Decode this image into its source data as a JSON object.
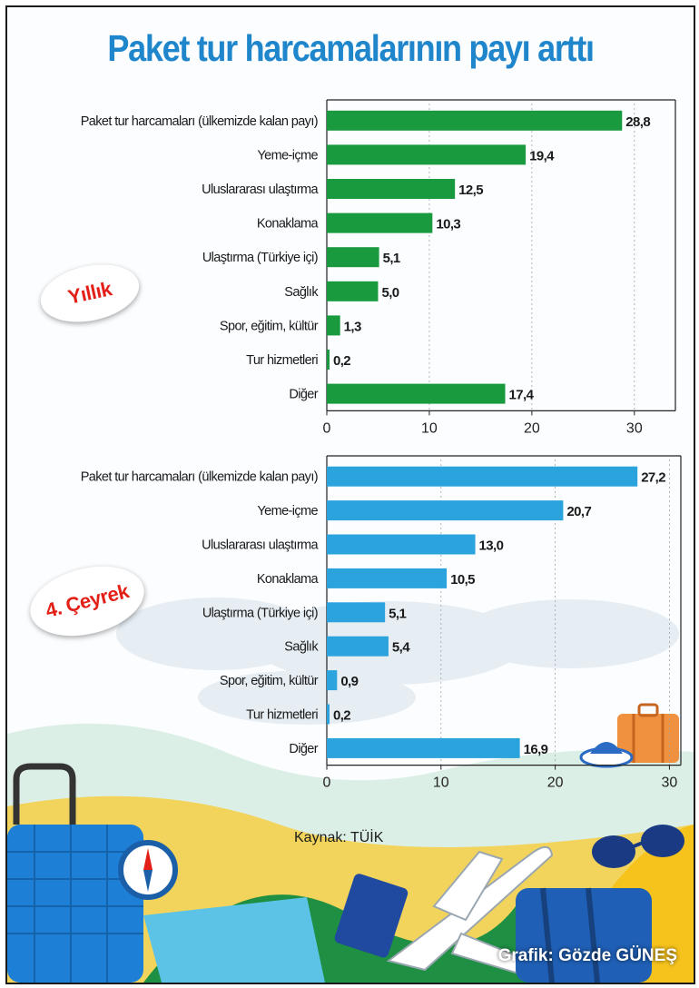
{
  "title": "Paket tur harcamalarının payı arttı",
  "source": "Kaynak: TÜİK",
  "credit": "Grafik: Gözde GÜNEŞ",
  "colors": {
    "title": "#1f86cc",
    "annual_bar": "#1a9a3e",
    "quarter_bar": "#2ba3dc",
    "badge_text": "#e32017"
  },
  "chart_data": [
    {
      "type": "bar",
      "orientation": "horizontal",
      "badge": "Yıllık",
      "categories": [
        "Paket tur harcamaları (ülkemizde kalan payı)",
        "Yeme-içme",
        "Uluslararası ulaştırma",
        "Konaklama",
        "Ulaştırma (Türkiye içi)",
        "Sağlık",
        "Spor, eğitim, kültür",
        "Tur hizmetleri",
        "Diğer"
      ],
      "values": [
        28.8,
        19.4,
        12.5,
        10.3,
        5.1,
        5.0,
        1.3,
        0.2,
        17.4
      ],
      "value_labels": [
        "28,8",
        "19,4",
        "12,5",
        "10,3",
        "5,1",
        "5,0",
        "1,3",
        "0,2",
        "17,4"
      ],
      "xlim": [
        0,
        34
      ],
      "ticks": [
        0,
        10,
        20,
        30
      ]
    },
    {
      "type": "bar",
      "orientation": "horizontal",
      "badge": "4. Çeyrek",
      "categories": [
        "Paket tur harcamaları (ülkemizde kalan payı)",
        "Yeme-içme",
        "Uluslararası ulaştırma",
        "Konaklama",
        "Ulaştırma (Türkiye içi)",
        "Sağlık",
        "Spor, eğitim, kültür",
        "Tur hizmetleri",
        "Diğer"
      ],
      "values": [
        27.2,
        20.7,
        13.0,
        10.5,
        5.1,
        5.4,
        0.9,
        0.2,
        16.9
      ],
      "value_labels": [
        "27,2",
        "20,7",
        "13,0",
        "10,5",
        "5,1",
        "5,4",
        "0,9",
        "0,2",
        "16,9"
      ],
      "xlim": [
        0,
        31
      ],
      "ticks": [
        0,
        10,
        20,
        30
      ]
    }
  ]
}
